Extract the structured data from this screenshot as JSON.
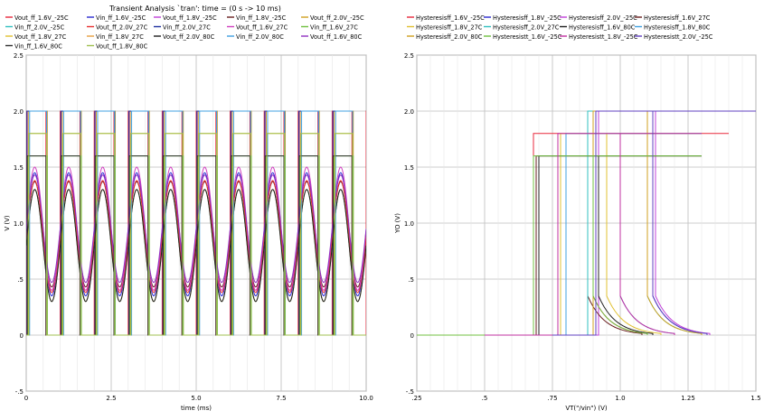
{
  "title": "Transient Analysis `tran': time = (0 s -> 10 ms)",
  "colors": {
    "grid": "#bdbdbd",
    "frame": "#9a9a9a",
    "background": "#ffffff"
  },
  "chart_data": [
    {
      "type": "line",
      "title": "Transient Analysis `tran': time = (0 s -> 10 ms)",
      "xlabel": "time (ms)",
      "ylabel": "V (V)",
      "xlim": [
        0,
        10
      ],
      "ylim": [
        -0.5,
        2.5
      ],
      "grid": true,
      "legend_placement": "top",
      "x_ticks": [
        "0",
        "2.5",
        "5.0",
        "7.5",
        "10.0"
      ],
      "x_tick_values": [
        0,
        2.5,
        5,
        7.5,
        10
      ],
      "y_ticks": [
        "-.5",
        "0",
        ".5",
        "1.0",
        "1.5",
        "2.0",
        "2.5"
      ],
      "y_tick_values": [
        -0.5,
        0,
        0.5,
        1.0,
        1.5,
        2.0,
        2.5
      ],
      "sine_period_ms": 1.0,
      "series": [
        {
          "name": "Vout_ff_1.6V_-25C",
          "color": "#e8283c",
          "kind": "square",
          "high": 2.0,
          "duty_start": 0.0,
          "duty_end": 0.58
        },
        {
          "name": "Vin_ff_1.6V_-25C",
          "color": "#2a2ad0",
          "kind": "sine",
          "center": 0.9,
          "amplitude": 0.55
        },
        {
          "name": "Vout_ff_1.8V_-25C",
          "color": "#c040d8",
          "kind": "square",
          "high": 2.0,
          "duty_start": 0.03,
          "duty_end": 0.6
        },
        {
          "name": "Vin_ff_1.8V_-25C",
          "color": "#6a2020",
          "kind": "sine",
          "center": 0.9,
          "amplitude": 0.47
        },
        {
          "name": "Vout_ff_2.0V_-25C",
          "color": "#d0a020",
          "kind": "square",
          "high": 2.0,
          "duty_start": 0.06,
          "duty_end": 0.62
        },
        {
          "name": "Vin_ff_2.0V_-25C",
          "color": "#30c0c0",
          "kind": "sine",
          "center": 0.8,
          "amplitude": 0.5
        },
        {
          "name": "Vout_ff_2.0V_27C",
          "color": "#e83030",
          "kind": "sine",
          "center": 0.88,
          "amplitude": 0.5
        },
        {
          "name": "Vin_ff_2.0V_27C",
          "color": "#2030a0",
          "kind": "square",
          "high": 2.0,
          "duty_start": 0.02,
          "duty_end": 0.6
        },
        {
          "name": "Vout_ff_1.6V_27C",
          "color": "#d040c0",
          "kind": "sine",
          "center": 0.95,
          "amplitude": 0.55
        },
        {
          "name": "Vin_ff_1.6V_27C",
          "color": "#70c040",
          "kind": "square",
          "high": 1.6,
          "duty_start": 0.05,
          "duty_end": 0.62
        },
        {
          "name": "Vout_ff_1.8V_27C",
          "color": "#e0c030",
          "kind": "square",
          "high": 1.8,
          "duty_start": 0.07,
          "duty_end": 0.6
        },
        {
          "name": "Vin_ff_1.8V_27C",
          "color": "#e8a040",
          "kind": "sine",
          "center": 0.8,
          "amplitude": 0.5
        },
        {
          "name": "Vout_ff_2.0V_80C",
          "color": "#202020",
          "kind": "sine",
          "center": 0.8,
          "amplitude": 0.5
        },
        {
          "name": "Vin_ff_2.0V_80C",
          "color": "#40a0e0",
          "kind": "square",
          "high": 2.0,
          "duty_start": 0.1,
          "duty_end": 0.6
        },
        {
          "name": "Vout_ff_1.6V_80C",
          "color": "#9030c0",
          "kind": "sine",
          "center": 0.95,
          "amplitude": 0.48
        },
        {
          "name": "Vin_ff_1.6V_80C",
          "color": "#303030",
          "kind": "square",
          "high": 1.6,
          "duty_start": 0.03,
          "duty_end": 0.58
        },
        {
          "name": "Vout_ff_1.8V_80C",
          "color": "#a0c050",
          "kind": "square",
          "high": 1.8,
          "duty_start": 0.08,
          "duty_end": 0.6
        }
      ]
    },
    {
      "type": "line",
      "title": "",
      "xlabel": "VT(\"/vin\") (V)",
      "ylabel": "YO (V)",
      "xlim": [
        0.25,
        1.5
      ],
      "ylim": [
        -0.5,
        2.5
      ],
      "grid": true,
      "legend_placement": "top",
      "x_ticks": [
        ".25",
        ".5",
        ".75",
        "1.0",
        "1.25",
        "1.5"
      ],
      "x_tick_values": [
        0.25,
        0.5,
        0.75,
        1.0,
        1.25,
        1.5
      ],
      "y_ticks": [
        "-.5",
        "0",
        ".5",
        "1.0",
        "1.5",
        "2.0",
        "2.5"
      ],
      "y_tick_values": [
        -0.5,
        0,
        0.5,
        1.0,
        1.5,
        2.0,
        2.5
      ],
      "series": [
        {
          "name": "Hysteresisff_1.6V_-25C",
          "color": "#e8283c",
          "high": 1.8,
          "x_start": 0.4,
          "x_end": 1.4,
          "rise_x": 0.68,
          "fall_x": 0.9
        },
        {
          "name": "Hysteresisff_1.8V_-25C",
          "color": "#2a2ad0",
          "high": 2.0,
          "x_start": 0.75,
          "x_end": 1.5,
          "rise_x": 0.9,
          "fall_x": 1.12
        },
        {
          "name": "Hysteresisff_2.0V_-25C",
          "color": "#c040d8",
          "high": 2.0,
          "x_start": 0.75,
          "x_end": 1.5,
          "rise_x": 0.92,
          "fall_x": 1.13
        },
        {
          "name": "Hysteresisff_1.6V_27C",
          "color": "#6a2020",
          "high": 1.6,
          "x_start": 0.5,
          "x_end": 1.3,
          "rise_x": 0.69,
          "fall_x": 0.88
        },
        {
          "name": "Hysteresisff_1.8V_27C",
          "color": "#e0c030",
          "high": 1.8,
          "x_start": 0.5,
          "x_end": 1.3,
          "rise_x": 0.78,
          "fall_x": 0.95
        },
        {
          "name": "Hysteresisff_2.0V_27C",
          "color": "#30c0c0",
          "high": 2.0,
          "x_start": 0.75,
          "x_end": 1.5,
          "rise_x": 0.88,
          "fall_x": 1.1
        },
        {
          "name": "Hysteresisff_1.6V_80C",
          "color": "#202020",
          "high": 1.6,
          "x_start": 0.4,
          "x_end": 1.3,
          "rise_x": 0.7,
          "fall_x": 0.92
        },
        {
          "name": "Hysteresisff_1.8V_80C",
          "color": "#40a0e0",
          "high": 1.8,
          "x_start": 0.5,
          "x_end": 1.3,
          "rise_x": 0.8,
          "fall_x": 1.0
        },
        {
          "name": "Hysteresisff_2.0V_80C",
          "color": "#d0a020",
          "high": 2.0,
          "x_start": 0.75,
          "x_end": 1.5,
          "rise_x": 0.9,
          "fall_x": 1.1
        },
        {
          "name": "Hysteresistt_1.6V_-25C",
          "color": "#70c040",
          "high": 1.6,
          "x_start": 0.25,
          "x_end": 1.3,
          "rise_x": 0.68,
          "fall_x": 0.9
        },
        {
          "name": "Hysteresistt_1.8V_-25C",
          "color": "#c030a0",
          "high": 1.8,
          "x_start": 0.5,
          "x_end": 1.3,
          "rise_x": 0.77,
          "fall_x": 1.0
        },
        {
          "name": "Hysteresistt_2.0V_-25C",
          "color": "#6040c0",
          "high": 2.0,
          "x_start": 0.75,
          "x_end": 1.5,
          "rise_x": 0.91,
          "fall_x": 1.12
        }
      ]
    }
  ]
}
